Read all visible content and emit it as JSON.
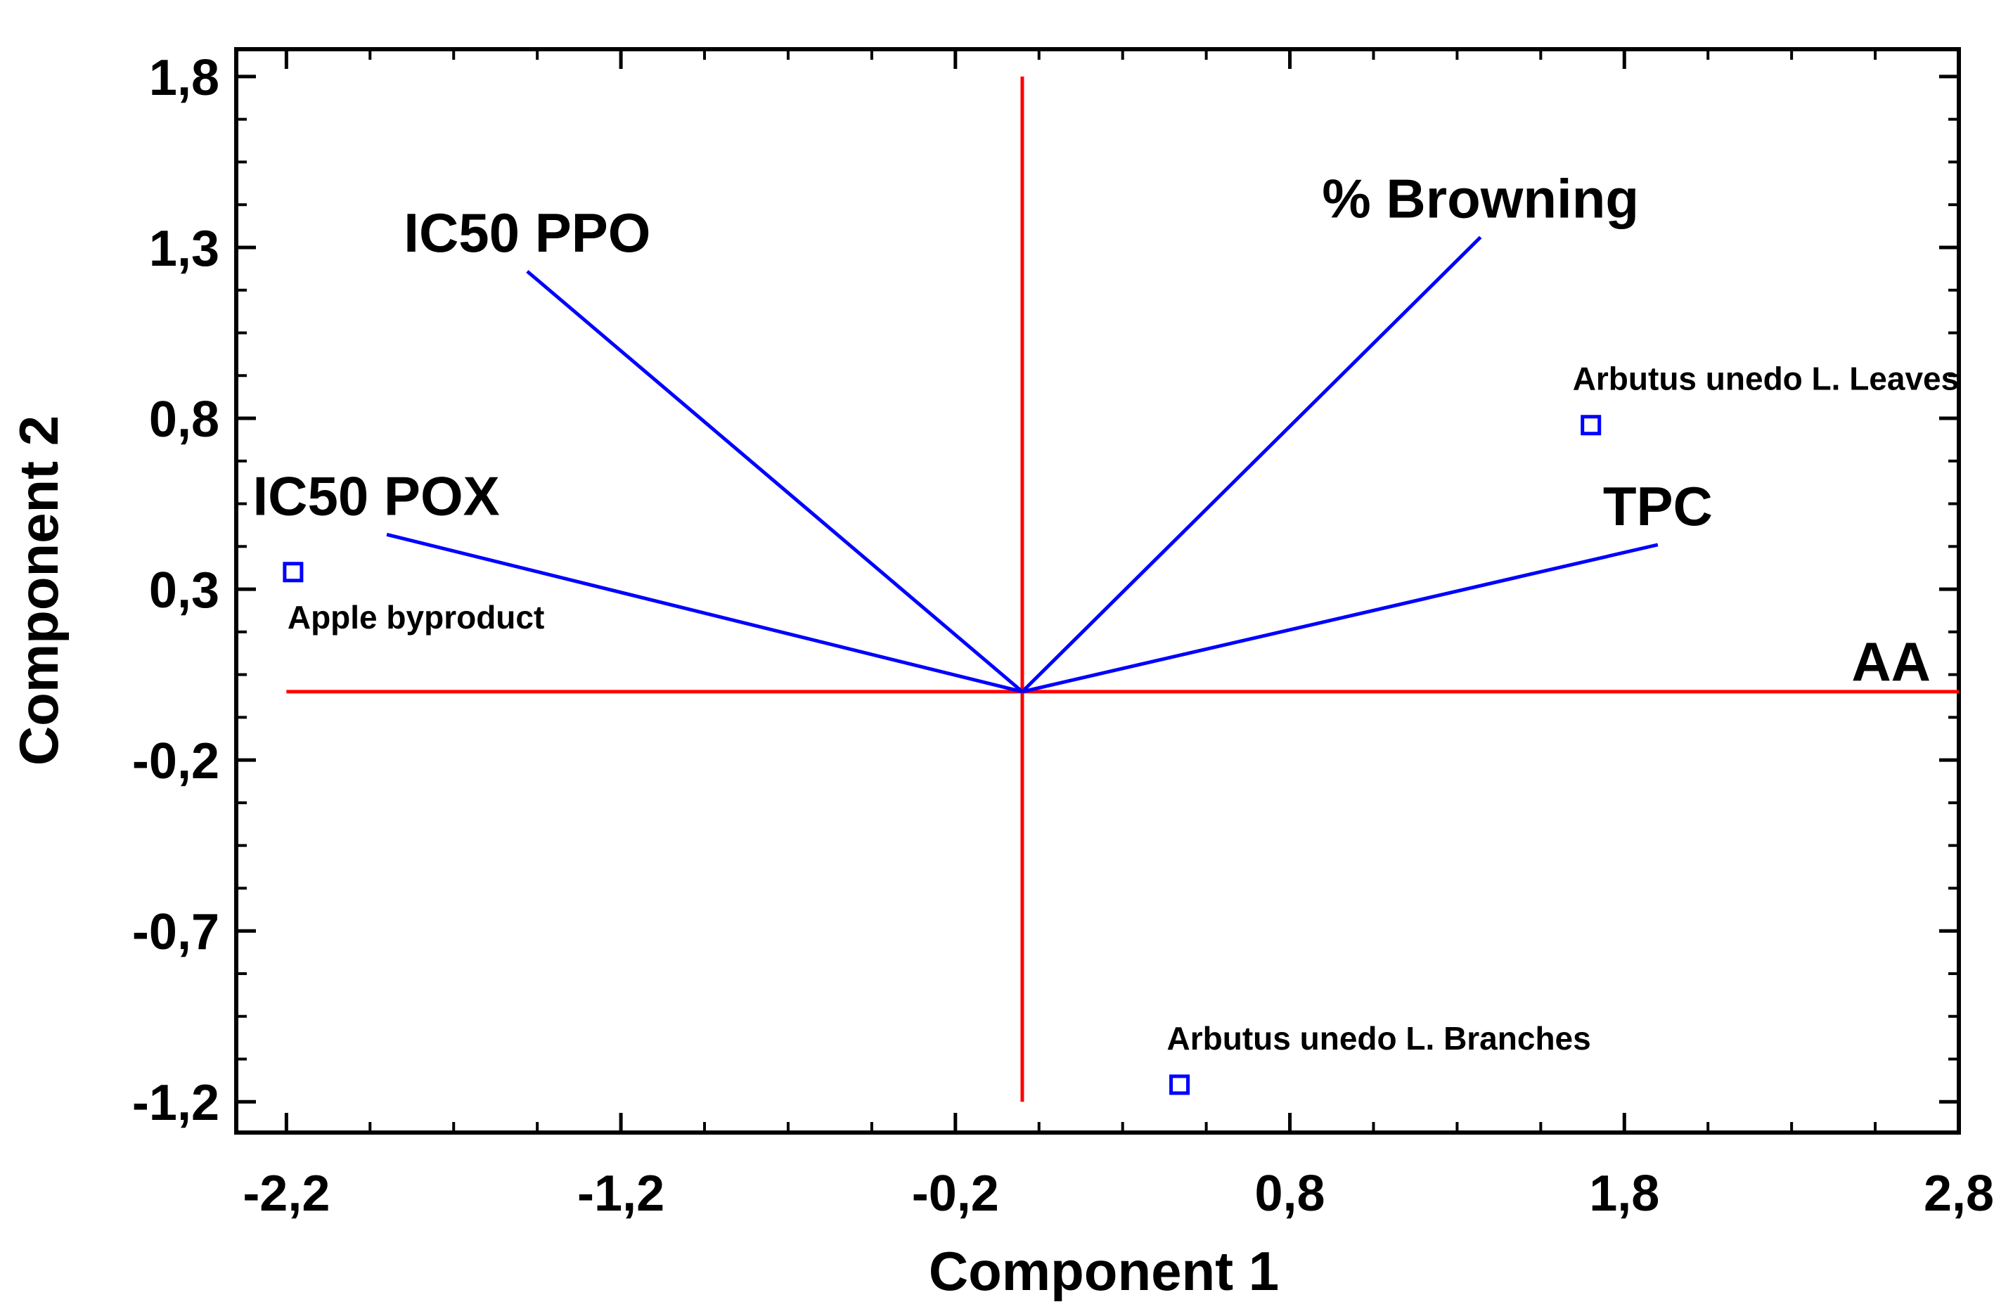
{
  "chart_data": {
    "type": "scatter",
    "subtype": "biplot",
    "title": "",
    "xlabel": "Component 1",
    "ylabel": "Component 2",
    "xlim": [
      -2.35,
      2.8
    ],
    "ylim": [
      -1.29,
      1.88
    ],
    "x_ticks": [
      -2.2,
      -1.2,
      -0.2,
      0.8,
      1.8,
      2.8
    ],
    "x_tick_labels": [
      "-2,2",
      "-1,2",
      "-0,2",
      "0,8",
      "1,8",
      "2,8"
    ],
    "y_ticks": [
      1.8,
      1.3,
      0.8,
      0.3,
      -0.2,
      -0.7,
      -1.2
    ],
    "y_tick_labels": [
      "1,8",
      "1,3",
      "0,8",
      "0,3",
      "-0,2",
      "-0,7",
      "-1,2"
    ],
    "grid": false,
    "reference_lines": {
      "color": "#ff0000",
      "horizontal": {
        "y": 0,
        "x_from": -2.2,
        "x_to": 2.8
      },
      "vertical": {
        "x": 0,
        "y_from": -1.2,
        "y_to": 1.8
      }
    },
    "loadings": {
      "color": "#0000ff",
      "vectors": [
        {
          "name": "IC50 PPO",
          "x": -1.48,
          "y": 1.23
        },
        {
          "name": "% Browning",
          "x": 1.37,
          "y": 1.33
        },
        {
          "name": "IC50 POX",
          "x": -1.9,
          "y": 0.46
        },
        {
          "name": "TPC",
          "x": 1.9,
          "y": 0.43
        },
        {
          "name": "AA",
          "x": 2.8,
          "y": 0.0
        }
      ]
    },
    "observations": {
      "color": "#0000ff",
      "marker": "square-open",
      "points": [
        {
          "name": "Arbutus unedo L. Leaves",
          "x": 1.7,
          "y": 0.78
        },
        {
          "name": "Apple byproduct",
          "x": -2.18,
          "y": 0.35
        },
        {
          "name": "Arbutus unedo L. Branches",
          "x": 0.47,
          "y": -1.15
        }
      ]
    }
  }
}
